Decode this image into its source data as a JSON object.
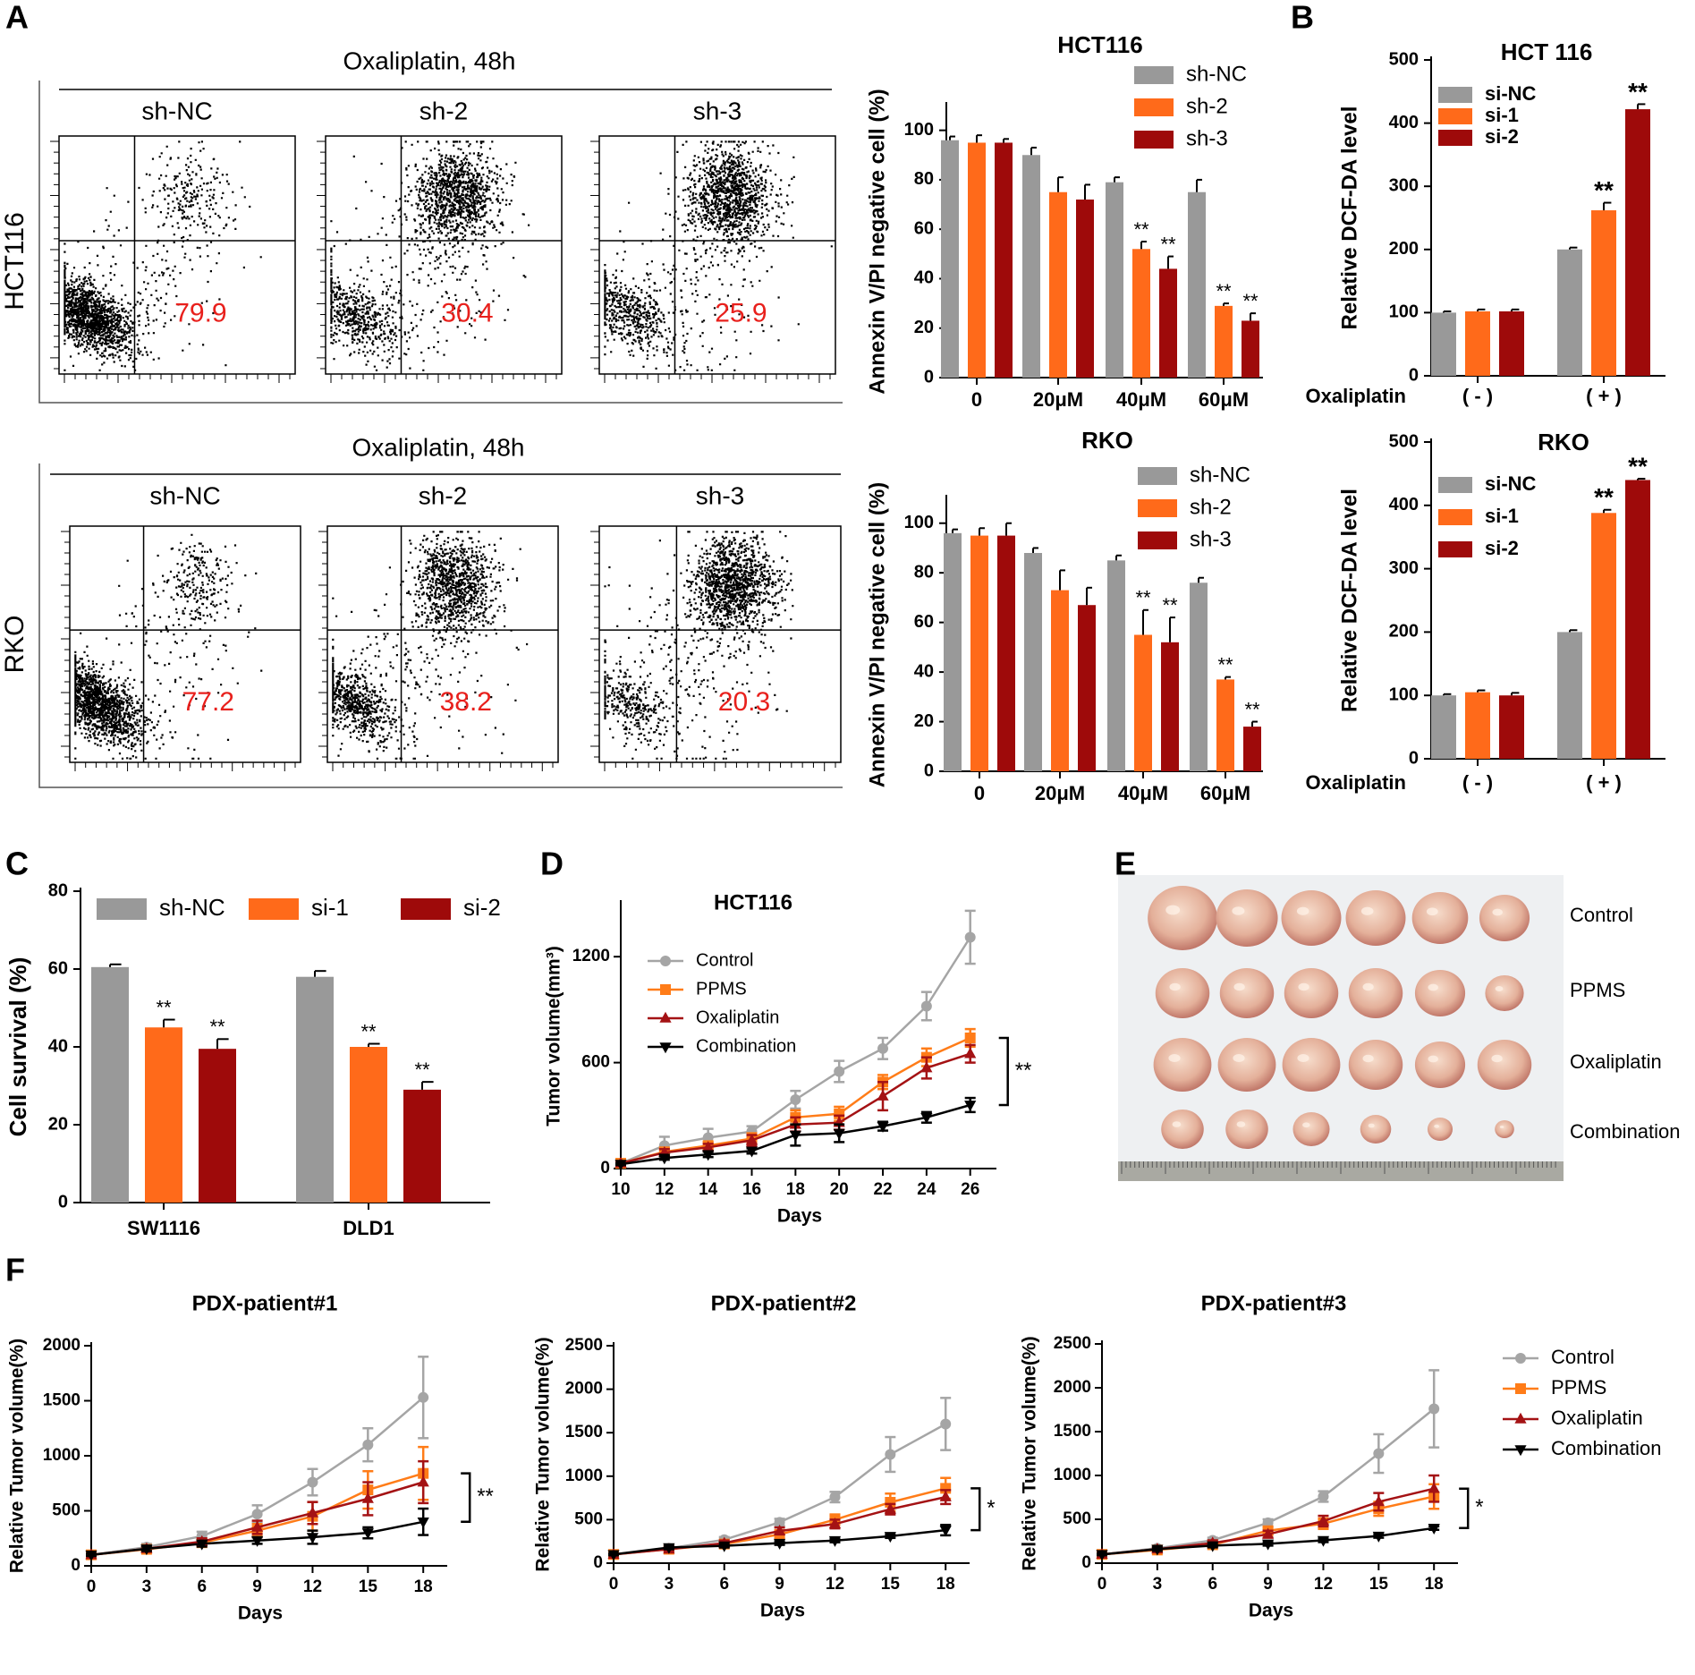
{
  "colors": {
    "gray": "#999999",
    "orange": "#ff6a1a",
    "darkred": "#9e0a0a",
    "black": "#000000",
    "red_text": "#e8201c",
    "line_gray": "#a5a5a5",
    "line_orange": "#ff7c18",
    "line_darkred": "#a41214"
  },
  "flow_panels": [
    {
      "panel_label": "A",
      "row_label": "HCT116",
      "title": "Oxaliplatin, 48h",
      "plots": [
        {
          "name": "sh-NC",
          "percent": "79.9"
        },
        {
          "name": "sh-2",
          "percent": "30.4"
        },
        {
          "name": "sh-3",
          "percent": "25.9"
        }
      ]
    },
    {
      "panel_label": "",
      "row_label": "RKO",
      "title": "Oxaliplatin, 48h",
      "plots": [
        {
          "name": "sh-NC",
          "percent": "77.2"
        },
        {
          "name": "sh-2",
          "percent": "38.2"
        },
        {
          "name": "sh-3",
          "percent": "20.3"
        }
      ]
    }
  ],
  "photo_panel": {
    "panel_label": "E",
    "row_labels": [
      "Control",
      "PPMS",
      "Oxaliplatin",
      "Combination"
    ]
  },
  "chart_data": [
    {
      "id": "a1",
      "type": "bar",
      "title": "HCT116",
      "categories": [
        "0",
        "20μM",
        "40μM",
        "60μM"
      ],
      "ylabel": "Annexin V/PI negative cell (%)",
      "xlabel": "",
      "ylim": [
        0,
        110
      ],
      "yticks": [
        0,
        20,
        40,
        60,
        80,
        100
      ],
      "series": [
        {
          "name": "sh-NC",
          "values": [
            96,
            90,
            79,
            75
          ],
          "errors": [
            1.5,
            3,
            2,
            5
          ],
          "stars": [
            "",
            "",
            "",
            ""
          ]
        },
        {
          "name": "sh-2",
          "values": [
            95,
            75,
            52,
            29
          ],
          "errors": [
            3,
            6,
            3,
            1
          ],
          "stars": [
            "",
            "",
            "**",
            "**"
          ]
        },
        {
          "name": "sh-3",
          "values": [
            95,
            72,
            44,
            23
          ],
          "errors": [
            1.5,
            6,
            5,
            3
          ],
          "stars": [
            "",
            "",
            "**",
            "**"
          ]
        }
      ]
    },
    {
      "id": "a2",
      "type": "bar",
      "title": "RKO",
      "categories": [
        "0",
        "20μM",
        "40μM",
        "60μM"
      ],
      "ylabel": "Annexin V/PI negative cell (%)",
      "xlabel": "",
      "ylim": [
        0,
        110
      ],
      "yticks": [
        0,
        20,
        40,
        60,
        80,
        100
      ],
      "series": [
        {
          "name": "sh-NC",
          "values": [
            96,
            88,
            85,
            76
          ],
          "errors": [
            1.5,
            2,
            2,
            2
          ],
          "stars": [
            "",
            "",
            "",
            ""
          ]
        },
        {
          "name": "sh-2",
          "values": [
            95,
            73,
            55,
            37
          ],
          "errors": [
            3,
            8,
            10,
            1
          ],
          "stars": [
            "",
            "",
            "**",
            "**"
          ]
        },
        {
          "name": "sh-3",
          "values": [
            95,
            67,
            52,
            18
          ],
          "errors": [
            5,
            7,
            10,
            2
          ],
          "stars": [
            "",
            "",
            "**",
            "**"
          ]
        }
      ]
    },
    {
      "id": "b1",
      "type": "bar",
      "panel_label": "B",
      "title": "HCT 116",
      "categories": [
        "( - )",
        "( + )"
      ],
      "xlabel": "Oxaliplatin",
      "ylabel": "Relative DCF-DA level",
      "ylim": [
        0,
        500
      ],
      "yticks": [
        0,
        100,
        200,
        300,
        400,
        500
      ],
      "series": [
        {
          "name": "si-NC",
          "values": [
            100,
            200
          ],
          "errors": [
            2,
            3
          ],
          "stars": [
            "",
            ""
          ]
        },
        {
          "name": "si-1",
          "values": [
            102,
            262
          ],
          "errors": [
            3,
            12
          ],
          "stars": [
            "",
            "**"
          ]
        },
        {
          "name": "si-2",
          "values": [
            102,
            422
          ],
          "errors": [
            3,
            8
          ],
          "stars": [
            "",
            "**"
          ]
        }
      ]
    },
    {
      "id": "b2",
      "type": "bar",
      "title": "RKO",
      "categories": [
        "( - )",
        "( + )"
      ],
      "xlabel": "Oxaliplatin",
      "ylabel": "Relative DCF-DA level",
      "ylim": [
        0,
        500
      ],
      "yticks": [
        0,
        100,
        200,
        300,
        400,
        500
      ],
      "series": [
        {
          "name": "si-NC",
          "values": [
            100,
            200
          ],
          "errors": [
            2,
            3
          ],
          "stars": [
            "",
            ""
          ]
        },
        {
          "name": "si-1",
          "values": [
            105,
            388
          ],
          "errors": [
            3,
            5
          ],
          "stars": [
            "",
            "**"
          ]
        },
        {
          "name": "si-2",
          "values": [
            100,
            440
          ],
          "errors": [
            4,
            2
          ],
          "stars": [
            "",
            "**"
          ]
        }
      ]
    },
    {
      "id": "c",
      "type": "bar",
      "panel_label": "C",
      "title": "",
      "categories": [
        "SW1116",
        "DLD1"
      ],
      "xlabel": "",
      "ylabel": "Cell survival (%)",
      "ylim": [
        0,
        80
      ],
      "yticks": [
        0,
        20,
        40,
        60,
        80
      ],
      "series": [
        {
          "name": "sh-NC",
          "values": [
            60.5,
            58
          ],
          "errors": [
            0.7,
            1.5
          ],
          "stars": [
            "",
            ""
          ]
        },
        {
          "name": "si-1",
          "values": [
            45,
            40
          ],
          "errors": [
            2,
            0.8
          ],
          "stars": [
            "**",
            "**"
          ]
        },
        {
          "name": "si-2",
          "values": [
            39.5,
            29
          ],
          "errors": [
            2.5,
            2
          ],
          "stars": [
            "**",
            "**"
          ]
        }
      ]
    },
    {
      "id": "d",
      "type": "line",
      "panel_label": "D",
      "title": "HCT116",
      "x": [
        10,
        12,
        14,
        16,
        18,
        20,
        22,
        24,
        26
      ],
      "xlabel": "Days",
      "ylabel": "Tumor volume(mm³)",
      "xlim": [
        10,
        27.2
      ],
      "ylim": [
        0,
        1500
      ],
      "yticks": [
        0,
        600,
        1200
      ],
      "significance": "**",
      "series": [
        {
          "name": "Control",
          "marker": "circle",
          "values": [
            30,
            130,
            175,
            210,
            390,
            550,
            680,
            920,
            1310
          ],
          "errors": [
            10,
            50,
            50,
            30,
            50,
            60,
            60,
            80,
            150
          ]
        },
        {
          "name": "PPMS",
          "marker": "square",
          "values": [
            30,
            95,
            130,
            170,
            290,
            310,
            490,
            630,
            740
          ],
          "errors": [
            10,
            20,
            20,
            30,
            40,
            40,
            40,
            50,
            50
          ]
        },
        {
          "name": "Oxaliplatin",
          "marker": "triangle-up",
          "values": [
            30,
            90,
            120,
            160,
            250,
            260,
            410,
            570,
            650
          ],
          "errors": [
            10,
            20,
            20,
            30,
            40,
            40,
            80,
            60,
            50
          ]
        },
        {
          "name": "Combination",
          "marker": "triangle-down",
          "values": [
            25,
            60,
            80,
            100,
            190,
            200,
            240,
            290,
            360
          ],
          "errors": [
            5,
            10,
            15,
            15,
            60,
            50,
            25,
            30,
            40
          ]
        }
      ]
    },
    {
      "id": "f1",
      "type": "line",
      "panel_label": "F",
      "title": "PDX-patient#1",
      "x": [
        0,
        3,
        6,
        9,
        12,
        15,
        18
      ],
      "xlabel": "Days",
      "ylabel": "Relative Tumor volume(%)",
      "xlim": [
        0,
        19.3
      ],
      "ylim": [
        0,
        2000
      ],
      "yticks": [
        0,
        500,
        1000,
        1500,
        2000
      ],
      "significance": "**",
      "series": [
        {
          "name": "Control",
          "marker": "circle",
          "values": [
            100,
            170,
            270,
            470,
            760,
            1100,
            1530
          ],
          "errors": [
            10,
            30,
            40,
            80,
            120,
            150,
            370
          ]
        },
        {
          "name": "PPMS",
          "marker": "square",
          "values": [
            100,
            150,
            210,
            320,
            450,
            690,
            840
          ],
          "errors": [
            10,
            20,
            30,
            60,
            130,
            170,
            240
          ]
        },
        {
          "name": "Oxaliplatin",
          "marker": "triangle-up",
          "values": [
            100,
            155,
            220,
            350,
            480,
            610,
            760
          ],
          "errors": [
            10,
            20,
            30,
            60,
            100,
            150,
            190
          ]
        },
        {
          "name": "Combination",
          "marker": "triangle-down",
          "values": [
            100,
            155,
            200,
            230,
            260,
            300,
            400
          ],
          "errors": [
            10,
            20,
            25,
            30,
            60,
            50,
            120
          ]
        }
      ]
    },
    {
      "id": "f2",
      "type": "line",
      "title": "PDX-patient#2",
      "x": [
        0,
        3,
        6,
        9,
        12,
        15,
        18
      ],
      "xlabel": "Days",
      "ylabel": "Relative Tumor volume(%)",
      "xlim": [
        0,
        19.3
      ],
      "ylim": [
        0,
        2500
      ],
      "yticks": [
        0,
        500,
        1000,
        1500,
        2000,
        2500
      ],
      "significance": "*",
      "series": [
        {
          "name": "Control",
          "marker": "circle",
          "values": [
            100,
            170,
            270,
            470,
            760,
            1250,
            1600
          ],
          "errors": [
            10,
            20,
            30,
            40,
            60,
            200,
            300
          ]
        },
        {
          "name": "PPMS",
          "marker": "square",
          "values": [
            100,
            160,
            220,
            330,
            500,
            700,
            860
          ],
          "errors": [
            10,
            20,
            30,
            40,
            60,
            100,
            120
          ]
        },
        {
          "name": "Oxaliplatin",
          "marker": "triangle-up",
          "values": [
            100,
            160,
            230,
            370,
            450,
            620,
            760
          ],
          "errors": [
            10,
            20,
            30,
            40,
            50,
            60,
            80
          ]
        },
        {
          "name": "Combination",
          "marker": "triangle-down",
          "values": [
            100,
            180,
            200,
            230,
            260,
            310,
            380
          ],
          "errors": [
            10,
            20,
            20,
            20,
            20,
            20,
            60
          ]
        }
      ]
    },
    {
      "id": "f3",
      "type": "line",
      "title": "PDX-patient#3",
      "x": [
        0,
        3,
        6,
        9,
        12,
        15,
        18
      ],
      "xlabel": "Days",
      "ylabel": "Relative Tumor volume(%)",
      "xlim": [
        0,
        19.3
      ],
      "ylim": [
        0,
        2500
      ],
      "yticks": [
        0,
        500,
        1000,
        1500,
        2000,
        2500
      ],
      "significance": "*",
      "legend": [
        "Control",
        "PPMS",
        "Oxaliplatin",
        "Combination"
      ],
      "series": [
        {
          "name": "Control",
          "marker": "circle",
          "values": [
            100,
            170,
            260,
            460,
            760,
            1250,
            1760
          ],
          "errors": [
            10,
            20,
            30,
            40,
            60,
            220,
            440
          ]
        },
        {
          "name": "PPMS",
          "marker": "square",
          "values": [
            100,
            150,
            210,
            370,
            450,
            620,
            760
          ],
          "errors": [
            10,
            20,
            30,
            40,
            60,
            80,
            140
          ]
        },
        {
          "name": "Oxaliplatin",
          "marker": "triangle-up",
          "values": [
            100,
            160,
            230,
            330,
            480,
            700,
            850
          ],
          "errors": [
            10,
            20,
            30,
            40,
            60,
            100,
            150
          ]
        },
        {
          "name": "Combination",
          "marker": "triangle-down",
          "values": [
            100,
            160,
            200,
            220,
            260,
            310,
            400
          ],
          "errors": [
            10,
            20,
            20,
            20,
            20,
            20,
            20
          ]
        }
      ]
    }
  ]
}
